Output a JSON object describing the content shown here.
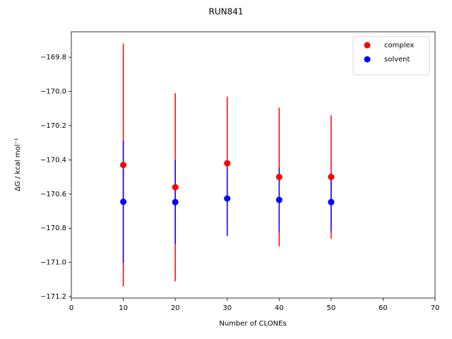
{
  "chart_data": {
    "type": "errorbar-scatter",
    "title": "RUN841",
    "xlabel": "Number of CLONEs",
    "ylabel": "ΔG / kcal mol⁻¹",
    "xlim": [
      0,
      70
    ],
    "xticks": [
      0,
      10,
      20,
      30,
      40,
      50,
      60,
      70
    ],
    "ylim": [
      -171.208,
      -169.651
    ],
    "yticks": [
      {
        "value": -169.8,
        "label": "−169.8"
      },
      {
        "value": -170.0,
        "label": "−170.0"
      },
      {
        "value": -170.2,
        "label": "−170.2"
      },
      {
        "value": -170.4,
        "label": "−170.4"
      },
      {
        "value": -170.6,
        "label": "−170.6"
      },
      {
        "value": -170.8,
        "label": "−170.8"
      },
      {
        "value": -171.0,
        "label": "−171.0"
      },
      {
        "value": -171.2,
        "label": "−171.2"
      }
    ],
    "legend": "upper right",
    "series": [
      {
        "name": "complex",
        "color": "#ff0000",
        "x": [
          10,
          20,
          30,
          40,
          50
        ],
        "values": [
          -170.43,
          -170.56,
          -170.42,
          -170.5,
          -170.5
        ],
        "errors": [
          0.71,
          0.55,
          0.39,
          0.405,
          0.36
        ]
      },
      {
        "name": "solvent",
        "color": "#0000ff",
        "x": [
          10,
          20,
          30,
          40,
          50
        ],
        "values": [
          -170.645,
          -170.647,
          -170.626,
          -170.634,
          -170.647
        ],
        "errors": [
          0.357,
          0.245,
          0.22,
          0.19,
          0.17
        ]
      }
    ]
  }
}
